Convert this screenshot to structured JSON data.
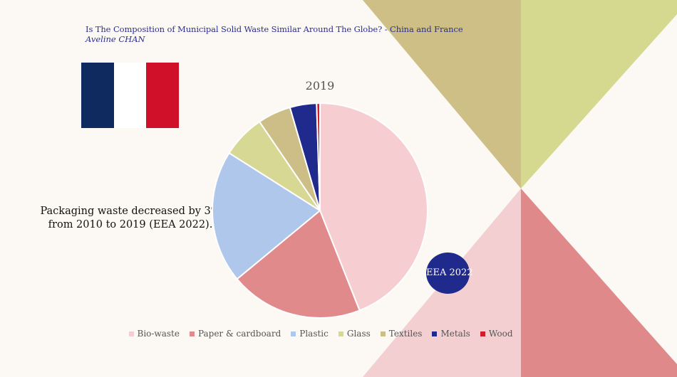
{
  "header": {
    "title": "Is The Composition of Municipal Solid Waste Similar Around The Globe? - China and France",
    "author": "Aveline CHAN"
  },
  "flag": {
    "country": "France",
    "colors": [
      "#0f2a5e",
      "#ffffff",
      "#d01029"
    ]
  },
  "note": {
    "line1": "Packaging waste decreased by 3%",
    "line2": "from 2010 to 2019 (EEA 2022)."
  },
  "badge": {
    "label": "EEA 2022",
    "color": "#1f2a8c"
  },
  "decor_colors": {
    "olive": "#cdbf86",
    "lime": "#d4d98f",
    "pink": "#f4cfd2",
    "rose": "#e0898b"
  },
  "chart_data": {
    "type": "pie",
    "title": "2019",
    "legend_position": "bottom",
    "slices": [
      {
        "label": "Bio-waste",
        "value": 44.0,
        "color": "#f6cdd1"
      },
      {
        "label": "Paper & cardboard",
        "value": 20.0,
        "color": "#e08a8c"
      },
      {
        "label": "Plastic",
        "value": 20.0,
        "color": "#aec7ea"
      },
      {
        "label": "Glass",
        "value": 6.5,
        "color": "#d6d893"
      },
      {
        "label": "Textiles",
        "value": 5.0,
        "color": "#cdbd86"
      },
      {
        "label": "Metals",
        "value": 4.0,
        "color": "#1f2a8c"
      },
      {
        "label": "Wood",
        "value": 0.5,
        "color": "#d01c2c"
      }
    ]
  }
}
